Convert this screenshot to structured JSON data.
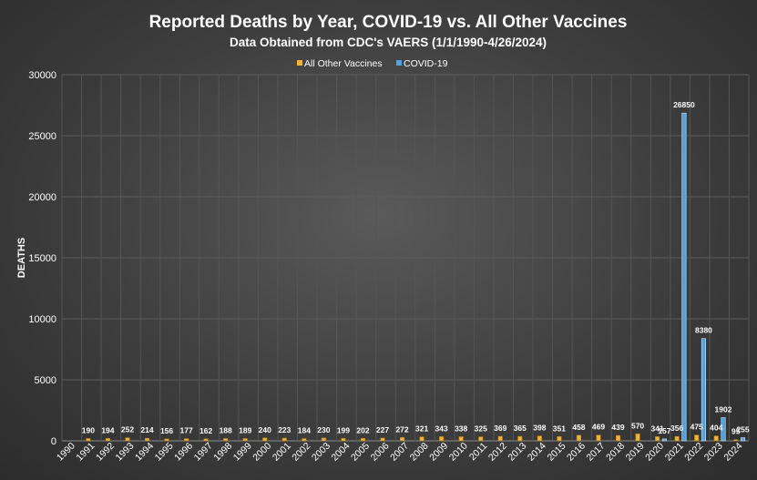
{
  "chart_data": {
    "type": "bar",
    "title": "Reported Deaths by Year, COVID-19 vs. All Other Vaccines",
    "subtitle": "Data Obtained from CDC's VAERS (1/1/1990-4/26/2024)",
    "ylabel": "DEATHS",
    "xlabel": "",
    "ylim": [
      0,
      30000
    ],
    "yticks": [
      0,
      5000,
      10000,
      15000,
      20000,
      25000,
      30000
    ],
    "grid": true,
    "legend_position": "top-center",
    "categories": [
      "1990",
      "1991",
      "1992",
      "1993",
      "1994",
      "1995",
      "1996",
      "1997",
      "1998",
      "1999",
      "2000",
      "2001",
      "2002",
      "2003",
      "2004",
      "2005",
      "2006",
      "2007",
      "2008",
      "2009",
      "2010",
      "2011",
      "2012",
      "2013",
      "2014",
      "2015",
      "2016",
      "2017",
      "2018",
      "2019",
      "2020",
      "2021",
      "2022",
      "2023",
      "2024"
    ],
    "series": [
      {
        "name": "All Other Vaccines",
        "color": "#f2b233",
        "values": [
          null,
          190,
          194,
          252,
          214,
          156,
          177,
          162,
          188,
          189,
          240,
          223,
          184,
          230,
          199,
          202,
          227,
          272,
          321,
          343,
          338,
          325,
          369,
          365,
          398,
          351,
          458,
          469,
          439,
          570,
          341,
          356,
          475,
          404,
          95
        ]
      },
      {
        "name": "COVID-19",
        "color": "#4fa3e0",
        "values": [
          null,
          null,
          null,
          null,
          null,
          null,
          null,
          null,
          null,
          null,
          null,
          null,
          null,
          null,
          null,
          null,
          null,
          null,
          null,
          null,
          null,
          null,
          null,
          null,
          null,
          null,
          null,
          null,
          null,
          null,
          157,
          26850,
          8380,
          1902,
          255
        ]
      }
    ]
  }
}
